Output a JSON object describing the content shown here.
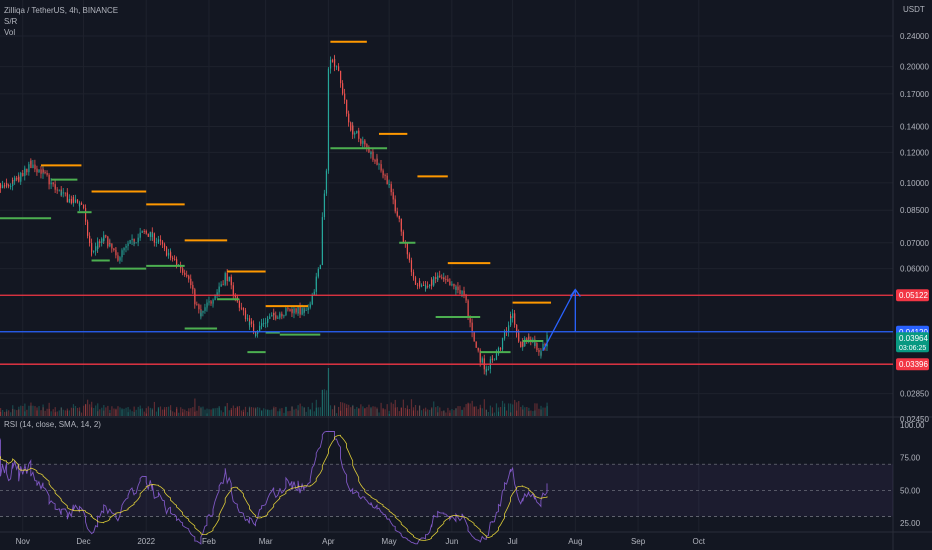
{
  "header": {
    "symbol": "Zilliqa / TetherUS, 4h, BINANCE",
    "indicator_sr": "S/R",
    "indicator_vol": "Vol",
    "rsi_label": "RSI (14, close, SMA, 14, 2)",
    "currency": "USDT"
  },
  "colors": {
    "background": "#131722",
    "grid": "#1e222d",
    "up_candle": "#26a69a",
    "down_candle": "#ef5350",
    "resistance_marker": "#ff9800",
    "support_marker": "#4caf50",
    "red_level": "#f23645",
    "blue_level": "#2962ff",
    "rsi_line": "#7e57c2",
    "rsi_ma": "#ffeb3b"
  },
  "chart_data": {
    "type": "candlestick",
    "price_scale": "log",
    "price_axis_ticks": [
      "0.24000",
      "0.20000",
      "0.17000",
      "0.14000",
      "0.12000",
      "0.10000",
      "0.08500",
      "0.07000",
      "0.06000",
      "0.04120",
      "0.03964",
      "0.03396",
      "0.02850",
      "0.02450"
    ],
    "time_axis_ticks": [
      "Nov",
      "Dec",
      "2022",
      "Feb",
      "Mar",
      "Apr",
      "May",
      "Jun",
      "Jul",
      "Aug",
      "Sep",
      "Oct"
    ],
    "price_path": [
      [
        "2021-10-15",
        0.096
      ],
      [
        "2021-10-25",
        0.098
      ],
      [
        "2021-11-01",
        0.104
      ],
      [
        "2021-11-05",
        0.112
      ],
      [
        "2021-11-10",
        0.108
      ],
      [
        "2021-11-18",
        0.096
      ],
      [
        "2021-11-25",
        0.09
      ],
      [
        "2021-12-01",
        0.088
      ],
      [
        "2021-12-05",
        0.066
      ],
      [
        "2021-12-12",
        0.072
      ],
      [
        "2021-12-18",
        0.064
      ],
      [
        "2021-12-25",
        0.07
      ],
      [
        "2022-01-01",
        0.075
      ],
      [
        "2022-01-08",
        0.07
      ],
      [
        "2022-01-15",
        0.063
      ],
      [
        "2022-01-22",
        0.058
      ],
      [
        "2022-01-28",
        0.045
      ],
      [
        "2022-02-05",
        0.052
      ],
      [
        "2022-02-10",
        0.058
      ],
      [
        "2022-02-15",
        0.05
      ],
      [
        "2022-02-24",
        0.041
      ],
      [
        "2022-03-01",
        0.044
      ],
      [
        "2022-03-08",
        0.046
      ],
      [
        "2022-03-15",
        0.047
      ],
      [
        "2022-03-22",
        0.046
      ],
      [
        "2022-03-28",
        0.06
      ],
      [
        "2022-03-31",
        0.1
      ],
      [
        "2022-04-02",
        0.215
      ],
      [
        "2022-04-06",
        0.2
      ],
      [
        "2022-04-12",
        0.14
      ],
      [
        "2022-04-18",
        0.128
      ],
      [
        "2022-04-25",
        0.115
      ],
      [
        "2022-05-01",
        0.1
      ],
      [
        "2022-05-06",
        0.082
      ],
      [
        "2022-05-10",
        0.066
      ],
      [
        "2022-05-14",
        0.055
      ],
      [
        "2022-05-20",
        0.054
      ],
      [
        "2022-05-26",
        0.057
      ],
      [
        "2022-06-01",
        0.054
      ],
      [
        "2022-06-07",
        0.052
      ],
      [
        "2022-06-13",
        0.038
      ],
      [
        "2022-06-18",
        0.033
      ],
      [
        "2022-06-25",
        0.037
      ],
      [
        "2022-07-01",
        0.046
      ],
      [
        "2022-07-05",
        0.038
      ],
      [
        "2022-07-10",
        0.04
      ],
      [
        "2022-07-15",
        0.0365
      ],
      [
        "2022-07-19",
        0.04
      ]
    ],
    "resistance_markers": [
      {
        "start": "2021-11-10",
        "end": "2021-11-30",
        "price": 0.111
      },
      {
        "start": "2021-12-05",
        "end": "2022-01-01",
        "price": 0.095
      },
      {
        "start": "2022-01-01",
        "end": "2022-01-20",
        "price": 0.088
      },
      {
        "start": "2022-01-20",
        "end": "2022-02-10",
        "price": 0.071
      },
      {
        "start": "2022-02-10",
        "end": "2022-03-01",
        "price": 0.059
      },
      {
        "start": "2022-03-01",
        "end": "2022-03-22",
        "price": 0.048
      },
      {
        "start": "2022-04-02",
        "end": "2022-04-20",
        "price": 0.232
      },
      {
        "start": "2022-04-26",
        "end": "2022-05-10",
        "price": 0.134
      },
      {
        "start": "2022-05-15",
        "end": "2022-05-30",
        "price": 0.104
      },
      {
        "start": "2022-05-30",
        "end": "2022-06-20",
        "price": 0.062
      },
      {
        "start": "2022-07-01",
        "end": "2022-07-20",
        "price": 0.049
      }
    ],
    "support_markers": [
      {
        "start": "2021-10-20",
        "end": "2021-11-15",
        "price": 0.081
      },
      {
        "start": "2021-11-15",
        "end": "2021-11-28",
        "price": 0.102
      },
      {
        "start": "2021-11-28",
        "end": "2021-12-05",
        "price": 0.084
      },
      {
        "start": "2021-12-05",
        "end": "2021-12-14",
        "price": 0.063
      },
      {
        "start": "2021-12-14",
        "end": "2022-01-01",
        "price": 0.06
      },
      {
        "start": "2022-01-01",
        "end": "2022-01-20",
        "price": 0.061
      },
      {
        "start": "2022-01-20",
        "end": "2022-02-05",
        "price": 0.042
      },
      {
        "start": "2022-02-05",
        "end": "2022-02-16",
        "price": 0.05
      },
      {
        "start": "2022-02-20",
        "end": "2022-03-01",
        "price": 0.0365
      },
      {
        "start": "2022-03-01",
        "end": "2022-03-08",
        "price": 0.041
      },
      {
        "start": "2022-03-08",
        "end": "2022-03-28",
        "price": 0.0405
      },
      {
        "start": "2022-04-02",
        "end": "2022-04-30",
        "price": 0.123
      },
      {
        "start": "2022-05-06",
        "end": "2022-05-14",
        "price": 0.07
      },
      {
        "start": "2022-05-24",
        "end": "2022-06-15",
        "price": 0.045
      },
      {
        "start": "2022-06-15",
        "end": "2022-06-30",
        "price": 0.0365
      },
      {
        "start": "2022-07-06",
        "end": "2022-07-16",
        "price": 0.039
      }
    ],
    "horizontal_levels": [
      {
        "price": 0.05122,
        "label": "0.05122",
        "color": "#f23645"
      },
      {
        "price": 0.0412,
        "label": "0.04120",
        "color": "#2962ff"
      },
      {
        "price": 0.03396,
        "label": "0.03396",
        "color": "#f23645"
      }
    ],
    "current_price": {
      "label": "0.03964",
      "countdown": "03:06:25",
      "color": "#089981"
    },
    "projection": {
      "from": [
        "2022-07-16",
        0.0368
      ],
      "to": [
        "2022-08-01",
        0.053
      ]
    },
    "rsi": {
      "type": "line",
      "axis_ticks": [
        "100.00",
        "75.00",
        "50.00",
        "25.00"
      ],
      "band": [
        30,
        70
      ],
      "range": [
        0,
        100
      ]
    }
  }
}
